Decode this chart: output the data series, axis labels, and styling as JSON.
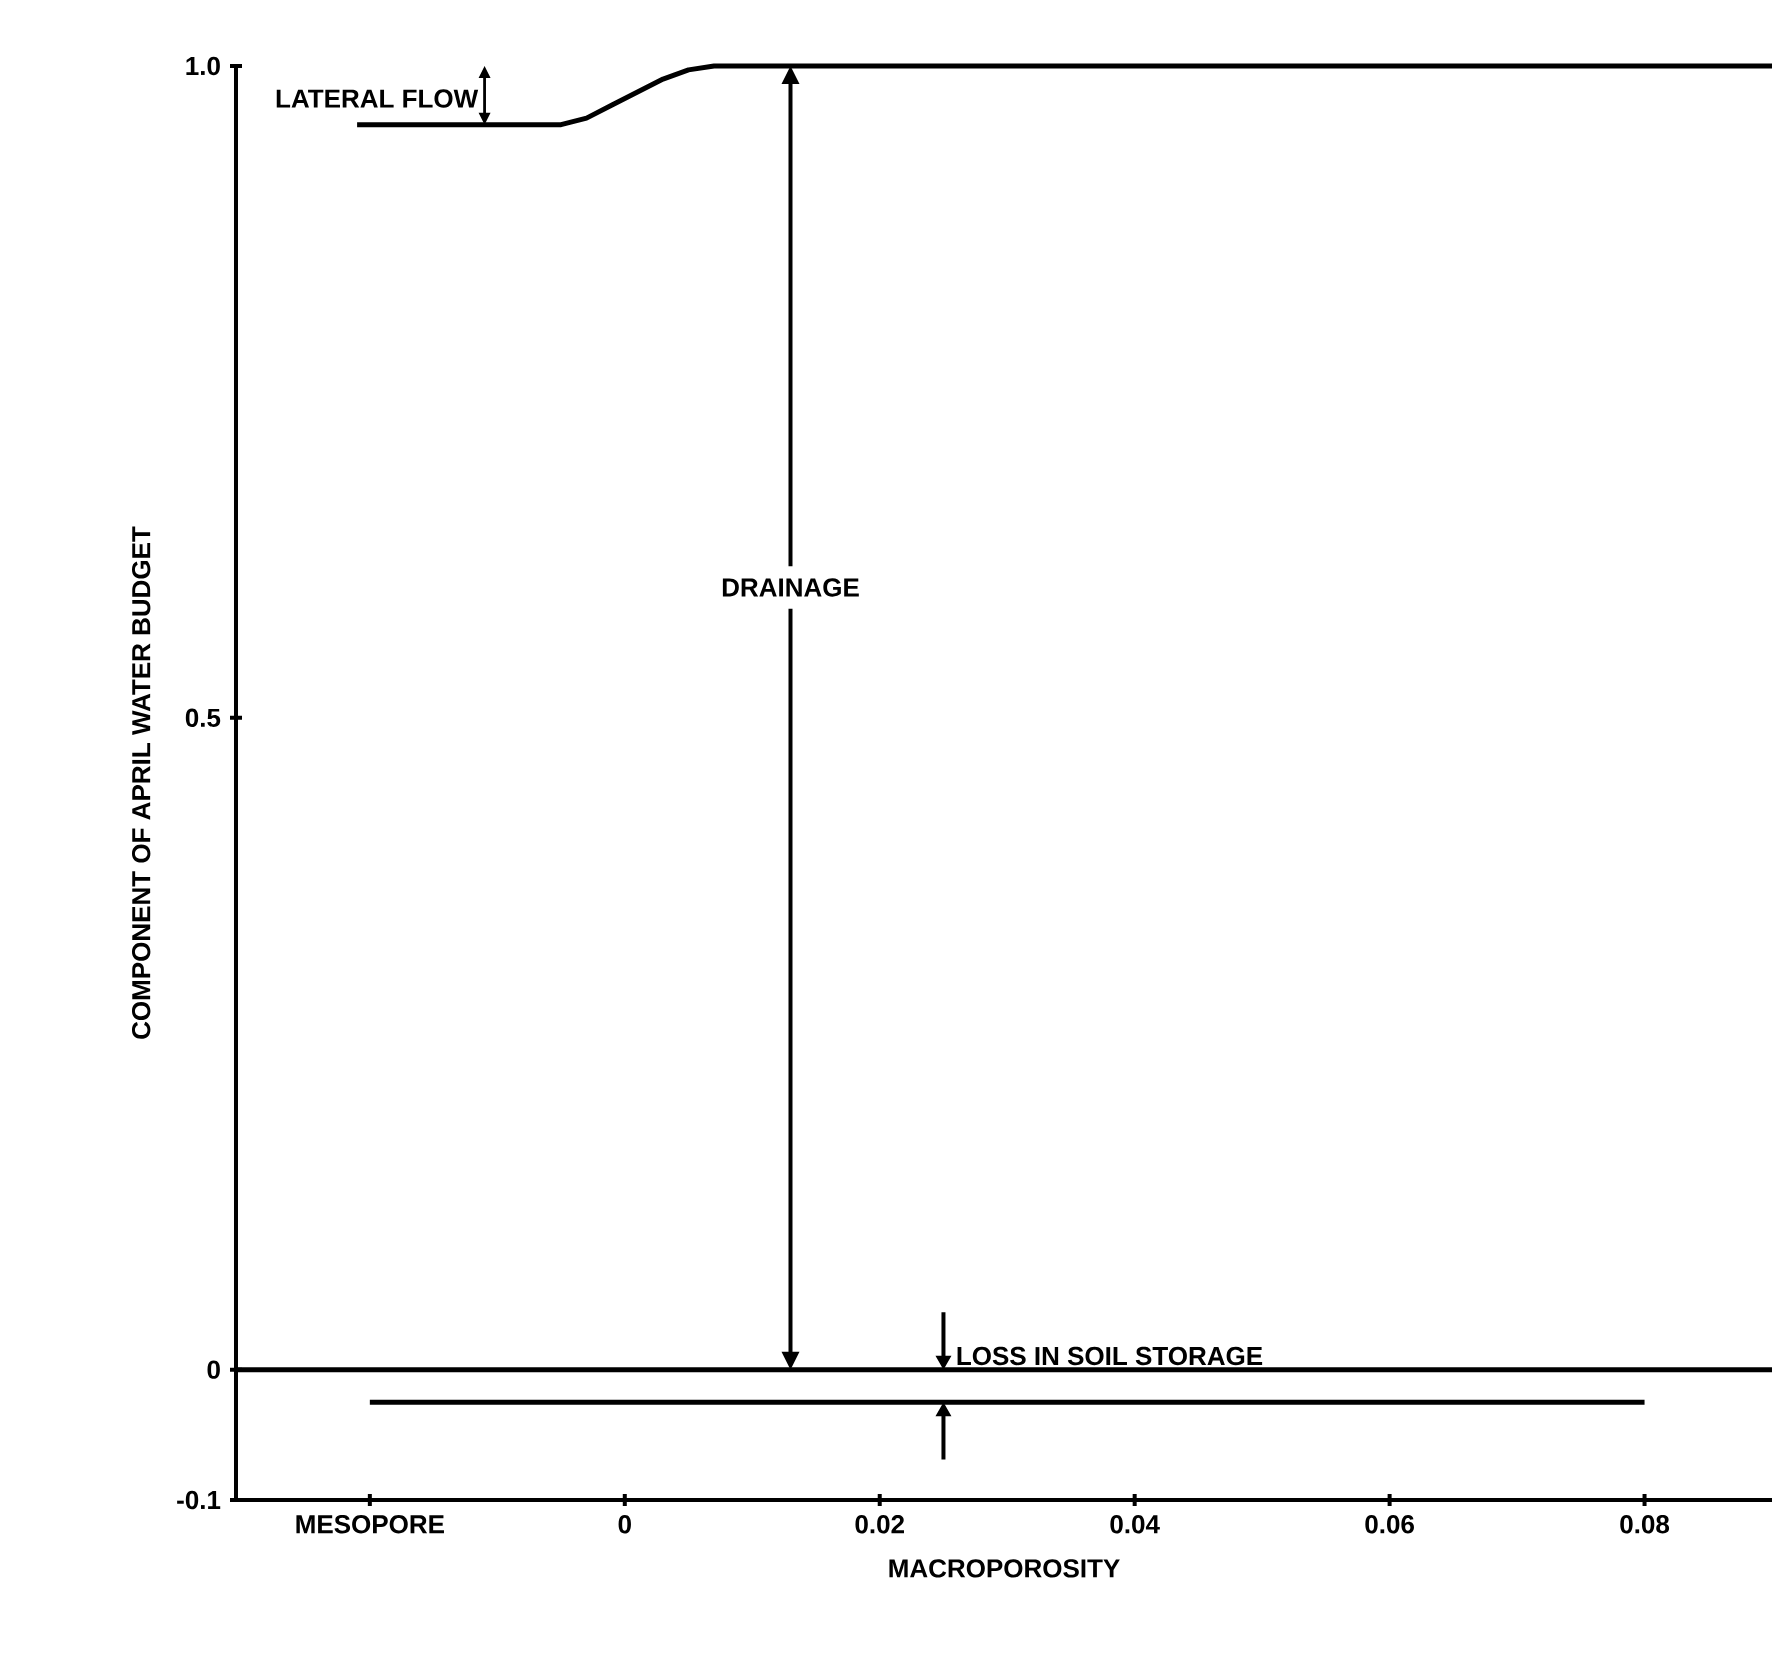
{
  "chart_data": {
    "type": "line",
    "xlabel": "MACROPOROSITY",
    "ylabel": "COMPONENT OF APRIL WATER BUDGET",
    "xlim": [
      -0.0305,
      0.09
    ],
    "ylim": [
      -0.1,
      1.0
    ],
    "xticks": [
      {
        "value": -0.02,
        "label": "MESOPORE"
      },
      0,
      0.02,
      0.04,
      0.06,
      0.08
    ],
    "yticks": [
      -0.1,
      0,
      0.5,
      {
        "value": 1.0,
        "label": "1.0"
      }
    ],
    "series": [
      {
        "color": "#000000",
        "x": [
          -0.021,
          -0.005,
          -0.003,
          -0.001,
          0.001,
          0.003,
          0.005,
          0.007,
          0.09
        ],
        "values": [
          0.955,
          0.955,
          0.96,
          0.97,
          0.98,
          0.99,
          0.997,
          1.0,
          1.0
        ]
      },
      {
        "color": "#000000",
        "x": [
          -0.02,
          0.08
        ],
        "values": [
          -0.025,
          -0.025
        ]
      }
    ],
    "ref_lines": [
      {
        "axis": "y",
        "value": 0,
        "color": "#000000"
      }
    ],
    "annotations": [
      "LATERAL FLOW",
      "DRAINAGE",
      "LOSS IN SOIL STORAGE"
    ],
    "marker": "none",
    "line_style": "solid"
  }
}
